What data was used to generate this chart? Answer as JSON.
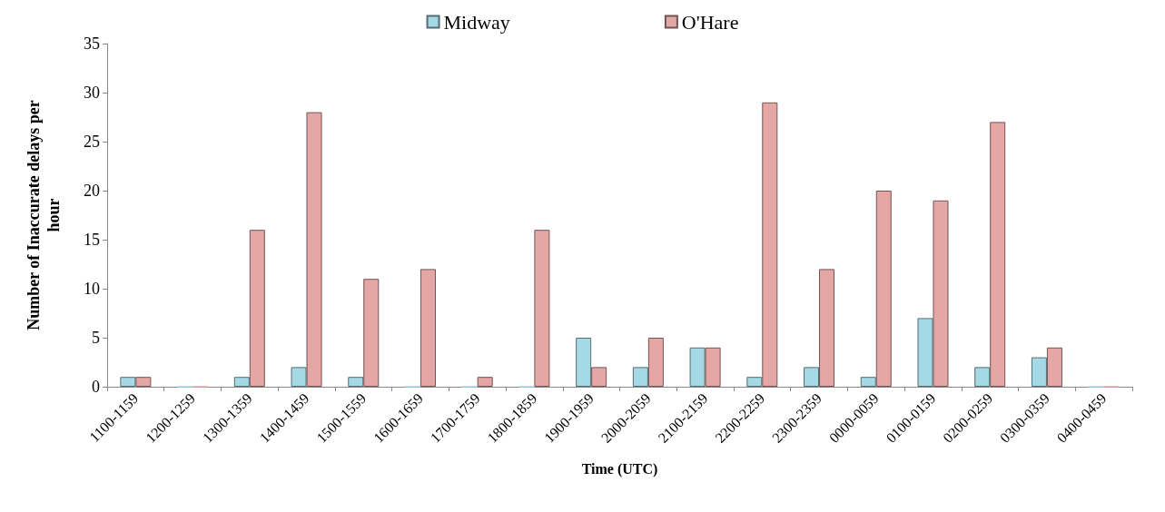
{
  "chart_data": {
    "type": "bar",
    "xlabel": "Time (UTC)",
    "ylabel": "Number of Inaccurate delays per hour",
    "categories": [
      "1100-1159",
      "1200-1259",
      "1300-1359",
      "1400-1459",
      "1500-1559",
      "1600-1659",
      "1700-1759",
      "1800-1859",
      "1900-1959",
      "2000-2059",
      "2100-2159",
      "2200-2259",
      "2300-2359",
      "0000-0059",
      "0100-0159",
      "0200-0259",
      "0300-0359",
      "0400-0459"
    ],
    "series": [
      {
        "name": "Midway",
        "color": "#a6d9e6",
        "values": [
          1,
          0,
          1,
          2,
          1,
          0,
          0,
          0,
          5,
          2,
          4,
          1,
          2,
          1,
          7,
          2,
          3,
          0
        ]
      },
      {
        "name": "O'Hare",
        "color": "#e4a7a5",
        "values": [
          1,
          0,
          16,
          28,
          11,
          12,
          1,
          16,
          2,
          5,
          4,
          29,
          12,
          20,
          19,
          27,
          4,
          0
        ]
      }
    ],
    "ylim": [
      0,
      35
    ],
    "yticks": [
      0,
      5,
      10,
      15,
      20,
      25,
      30,
      35
    ],
    "grid": false,
    "legend": "top"
  }
}
